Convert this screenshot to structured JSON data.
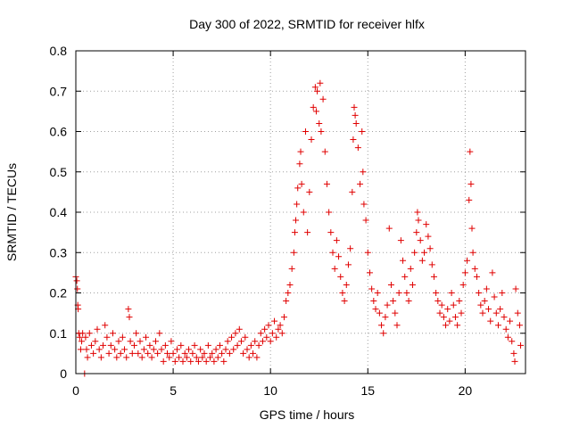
{
  "chart_data": {
    "type": "scatter",
    "title": "Day 300 of 2022, SRMTID for receiver hlfx",
    "xlabel": "GPS time / hours",
    "ylabel": "SRMTID / TECUs",
    "xlim": [
      0,
      23.1
    ],
    "ylim": [
      0,
      0.8
    ],
    "xticks": [
      0,
      5,
      10,
      15,
      20
    ],
    "xtick_labels": [
      "0",
      "5",
      "10",
      "15",
      "20"
    ],
    "yticks": [
      0,
      0.1,
      0.2,
      0.3,
      0.4,
      0.5,
      0.6,
      0.7,
      0.8
    ],
    "ytick_labels": [
      "0",
      "0.1",
      "0.2",
      "0.3",
      "0.4",
      "0.5",
      "0.6",
      "0.7",
      "0.8"
    ],
    "grid": true,
    "marker": "+",
    "color": "#e00000",
    "series": [
      {
        "name": "SRMTID",
        "points": [
          [
            0.0,
            0.24
          ],
          [
            0.05,
            0.23
          ],
          [
            0.08,
            0.21
          ],
          [
            0.1,
            0.17
          ],
          [
            0.12,
            0.16
          ],
          [
            0.15,
            0.1
          ],
          [
            0.2,
            0.09
          ],
          [
            0.25,
            0.06
          ],
          [
            0.3,
            0.08
          ],
          [
            0.35,
            0.1
          ],
          [
            0.45,
            0.0
          ],
          [
            0.5,
            0.09
          ],
          [
            0.55,
            0.06
          ],
          [
            0.6,
            0.04
          ],
          [
            0.7,
            0.1
          ],
          [
            0.8,
            0.07
          ],
          [
            0.9,
            0.05
          ],
          [
            1.0,
            0.08
          ],
          [
            1.1,
            0.11
          ],
          [
            1.2,
            0.06
          ],
          [
            1.3,
            0.04
          ],
          [
            1.4,
            0.07
          ],
          [
            1.5,
            0.12
          ],
          [
            1.6,
            0.09
          ],
          [
            1.7,
            0.05
          ],
          [
            1.8,
            0.07
          ],
          [
            1.9,
            0.1
          ],
          [
            2.0,
            0.06
          ],
          [
            2.1,
            0.04
          ],
          [
            2.2,
            0.08
          ],
          [
            2.3,
            0.05
          ],
          [
            2.4,
            0.09
          ],
          [
            2.5,
            0.06
          ],
          [
            2.6,
            0.04
          ],
          [
            2.7,
            0.16
          ],
          [
            2.75,
            0.14
          ],
          [
            2.8,
            0.08
          ],
          [
            2.9,
            0.05
          ],
          [
            3.0,
            0.07
          ],
          [
            3.1,
            0.1
          ],
          [
            3.2,
            0.05
          ],
          [
            3.3,
            0.08
          ],
          [
            3.4,
            0.04
          ],
          [
            3.5,
            0.06
          ],
          [
            3.6,
            0.09
          ],
          [
            3.7,
            0.05
          ],
          [
            3.8,
            0.07
          ],
          [
            3.9,
            0.04
          ],
          [
            4.0,
            0.06
          ],
          [
            4.1,
            0.08
          ],
          [
            4.2,
            0.05
          ],
          [
            4.3,
            0.1
          ],
          [
            4.4,
            0.06
          ],
          [
            4.5,
            0.03
          ],
          [
            4.6,
            0.07
          ],
          [
            4.7,
            0.05
          ],
          [
            4.8,
            0.04
          ],
          [
            4.9,
            0.08
          ],
          [
            5.0,
            0.05
          ],
          [
            5.1,
            0.03
          ],
          [
            5.2,
            0.06
          ],
          [
            5.3,
            0.04
          ],
          [
            5.4,
            0.07
          ],
          [
            5.5,
            0.03
          ],
          [
            5.6,
            0.05
          ],
          [
            5.7,
            0.04
          ],
          [
            5.8,
            0.06
          ],
          [
            5.9,
            0.03
          ],
          [
            6.0,
            0.05
          ],
          [
            6.1,
            0.07
          ],
          [
            6.2,
            0.04
          ],
          [
            6.3,
            0.03
          ],
          [
            6.4,
            0.06
          ],
          [
            6.5,
            0.04
          ],
          [
            6.6,
            0.05
          ],
          [
            6.7,
            0.03
          ],
          [
            6.8,
            0.07
          ],
          [
            6.9,
            0.04
          ],
          [
            7.0,
            0.05
          ],
          [
            7.1,
            0.03
          ],
          [
            7.2,
            0.06
          ],
          [
            7.3,
            0.04
          ],
          [
            7.4,
            0.07
          ],
          [
            7.5,
            0.05
          ],
          [
            7.6,
            0.03
          ],
          [
            7.7,
            0.06
          ],
          [
            7.8,
            0.08
          ],
          [
            7.9,
            0.05
          ],
          [
            8.0,
            0.09
          ],
          [
            8.1,
            0.06
          ],
          [
            8.2,
            0.1
          ],
          [
            8.3,
            0.07
          ],
          [
            8.4,
            0.11
          ],
          [
            8.5,
            0.08
          ],
          [
            8.6,
            0.05
          ],
          [
            8.7,
            0.09
          ],
          [
            8.8,
            0.06
          ],
          [
            8.9,
            0.04
          ],
          [
            9.0,
            0.07
          ],
          [
            9.1,
            0.05
          ],
          [
            9.2,
            0.08
          ],
          [
            9.3,
            0.04
          ],
          [
            9.4,
            0.07
          ],
          [
            9.5,
            0.1
          ],
          [
            9.6,
            0.08
          ],
          [
            9.7,
            0.11
          ],
          [
            9.8,
            0.09
          ],
          [
            9.9,
            0.12
          ],
          [
            10.0,
            0.08
          ],
          [
            10.1,
            0.1
          ],
          [
            10.2,
            0.13
          ],
          [
            10.3,
            0.09
          ],
          [
            10.4,
            0.11
          ],
          [
            10.5,
            0.12
          ],
          [
            10.6,
            0.1
          ],
          [
            10.7,
            0.14
          ],
          [
            10.8,
            0.18
          ],
          [
            10.9,
            0.2
          ],
          [
            11.0,
            0.22
          ],
          [
            11.1,
            0.26
          ],
          [
            11.2,
            0.3
          ],
          [
            11.25,
            0.35
          ],
          [
            11.3,
            0.38
          ],
          [
            11.35,
            0.42
          ],
          [
            11.4,
            0.46
          ],
          [
            11.5,
            0.52
          ],
          [
            11.55,
            0.55
          ],
          [
            11.6,
            0.47
          ],
          [
            11.7,
            0.4
          ],
          [
            11.8,
            0.6
          ],
          [
            11.9,
            0.35
          ],
          [
            12.0,
            0.45
          ],
          [
            12.1,
            0.58
          ],
          [
            12.2,
            0.66
          ],
          [
            12.3,
            0.71
          ],
          [
            12.35,
            0.65
          ],
          [
            12.4,
            0.7
          ],
          [
            12.5,
            0.62
          ],
          [
            12.55,
            0.72
          ],
          [
            12.6,
            0.6
          ],
          [
            12.7,
            0.68
          ],
          [
            12.8,
            0.55
          ],
          [
            12.9,
            0.47
          ],
          [
            13.0,
            0.4
          ],
          [
            13.1,
            0.35
          ],
          [
            13.2,
            0.3
          ],
          [
            13.3,
            0.26
          ],
          [
            13.4,
            0.33
          ],
          [
            13.5,
            0.29
          ],
          [
            13.6,
            0.24
          ],
          [
            13.7,
            0.2
          ],
          [
            13.8,
            0.18
          ],
          [
            13.9,
            0.22
          ],
          [
            14.0,
            0.27
          ],
          [
            14.1,
            0.31
          ],
          [
            14.2,
            0.45
          ],
          [
            14.25,
            0.58
          ],
          [
            14.3,
            0.66
          ],
          [
            14.35,
            0.64
          ],
          [
            14.4,
            0.62
          ],
          [
            14.5,
            0.56
          ],
          [
            14.6,
            0.47
          ],
          [
            14.7,
            0.6
          ],
          [
            14.75,
            0.5
          ],
          [
            14.8,
            0.42
          ],
          [
            14.9,
            0.38
          ],
          [
            15.0,
            0.3
          ],
          [
            15.1,
            0.25
          ],
          [
            15.2,
            0.21
          ],
          [
            15.3,
            0.18
          ],
          [
            15.4,
            0.16
          ],
          [
            15.5,
            0.2
          ],
          [
            15.6,
            0.15
          ],
          [
            15.7,
            0.12
          ],
          [
            15.8,
            0.1
          ],
          [
            15.9,
            0.14
          ],
          [
            16.0,
            0.17
          ],
          [
            16.1,
            0.36
          ],
          [
            16.2,
            0.22
          ],
          [
            16.3,
            0.18
          ],
          [
            16.4,
            0.15
          ],
          [
            16.5,
            0.12
          ],
          [
            16.6,
            0.2
          ],
          [
            16.7,
            0.33
          ],
          [
            16.8,
            0.28
          ],
          [
            16.9,
            0.24
          ],
          [
            17.0,
            0.2
          ],
          [
            17.1,
            0.18
          ],
          [
            17.2,
            0.26
          ],
          [
            17.3,
            0.22
          ],
          [
            17.4,
            0.3
          ],
          [
            17.5,
            0.35
          ],
          [
            17.55,
            0.4
          ],
          [
            17.6,
            0.38
          ],
          [
            17.7,
            0.33
          ],
          [
            17.8,
            0.28
          ],
          [
            17.9,
            0.3
          ],
          [
            18.0,
            0.37
          ],
          [
            18.1,
            0.34
          ],
          [
            18.2,
            0.31
          ],
          [
            18.3,
            0.27
          ],
          [
            18.4,
            0.24
          ],
          [
            18.5,
            0.2
          ],
          [
            18.6,
            0.18
          ],
          [
            18.7,
            0.15
          ],
          [
            18.8,
            0.17
          ],
          [
            18.9,
            0.14
          ],
          [
            19.0,
            0.12
          ],
          [
            19.1,
            0.16
          ],
          [
            19.2,
            0.13
          ],
          [
            19.3,
            0.2
          ],
          [
            19.4,
            0.17
          ],
          [
            19.5,
            0.14
          ],
          [
            19.6,
            0.12
          ],
          [
            19.7,
            0.18
          ],
          [
            19.8,
            0.15
          ],
          [
            19.9,
            0.22
          ],
          [
            20.0,
            0.25
          ],
          [
            20.1,
            0.28
          ],
          [
            20.2,
            0.43
          ],
          [
            20.25,
            0.55
          ],
          [
            20.3,
            0.47
          ],
          [
            20.35,
            0.36
          ],
          [
            20.4,
            0.3
          ],
          [
            20.5,
            0.26
          ],
          [
            20.6,
            0.24
          ],
          [
            20.7,
            0.2
          ],
          [
            20.8,
            0.17
          ],
          [
            20.9,
            0.15
          ],
          [
            21.0,
            0.18
          ],
          [
            21.1,
            0.21
          ],
          [
            21.2,
            0.16
          ],
          [
            21.3,
            0.13
          ],
          [
            21.4,
            0.25
          ],
          [
            21.5,
            0.19
          ],
          [
            21.6,
            0.15
          ],
          [
            21.7,
            0.12
          ],
          [
            21.8,
            0.16
          ],
          [
            21.9,
            0.2
          ],
          [
            22.0,
            0.14
          ],
          [
            22.1,
            0.11
          ],
          [
            22.2,
            0.09
          ],
          [
            22.3,
            0.13
          ],
          [
            22.4,
            0.08
          ],
          [
            22.5,
            0.05
          ],
          [
            22.55,
            0.03
          ],
          [
            22.6,
            0.21
          ],
          [
            22.7,
            0.15
          ],
          [
            22.8,
            0.12
          ],
          [
            22.85,
            0.07
          ]
        ]
      }
    ]
  }
}
